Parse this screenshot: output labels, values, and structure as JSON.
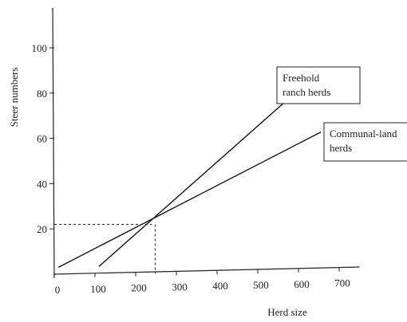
{
  "chart_data": {
    "type": "line",
    "xlabel": "Herd size",
    "ylabel": "Steer numbers",
    "xlim": [
      0,
      750
    ],
    "ylim": [
      0,
      110
    ],
    "x_ticks": [
      0,
      100,
      200,
      300,
      400,
      500,
      600,
      700
    ],
    "y_ticks": [
      20,
      40,
      60,
      80,
      100
    ],
    "grid": false,
    "series": [
      {
        "name": "Freehold ranch herds",
        "x": [
          110,
          575
        ],
        "y": [
          3,
          75
        ]
      },
      {
        "name": "Communal-land herds",
        "x": [
          10,
          655
        ],
        "y": [
          3,
          60
        ]
      }
    ],
    "intersection_guide": {
      "x": 240,
      "y": 21
    }
  }
}
